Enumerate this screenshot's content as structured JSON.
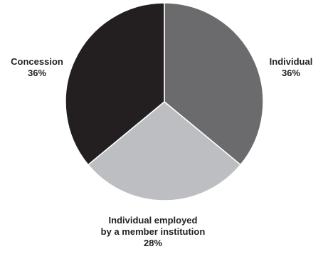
{
  "chart_data": {
    "type": "pie",
    "start_angle_deg": 0,
    "direction": "clockwise",
    "slices": [
      {
        "label_lines": [
          "Individual",
          "36%"
        ],
        "value": 36,
        "color": "#6b6b6e"
      },
      {
        "label_lines": [
          "Individual employed",
          "by a member institution",
          "28%"
        ],
        "value": 28,
        "color": "#bdbec1"
      },
      {
        "label_lines": [
          "Concession",
          "36%"
        ],
        "value": 36,
        "color": "#231f20"
      }
    ],
    "separator_color": "#ffffff"
  }
}
